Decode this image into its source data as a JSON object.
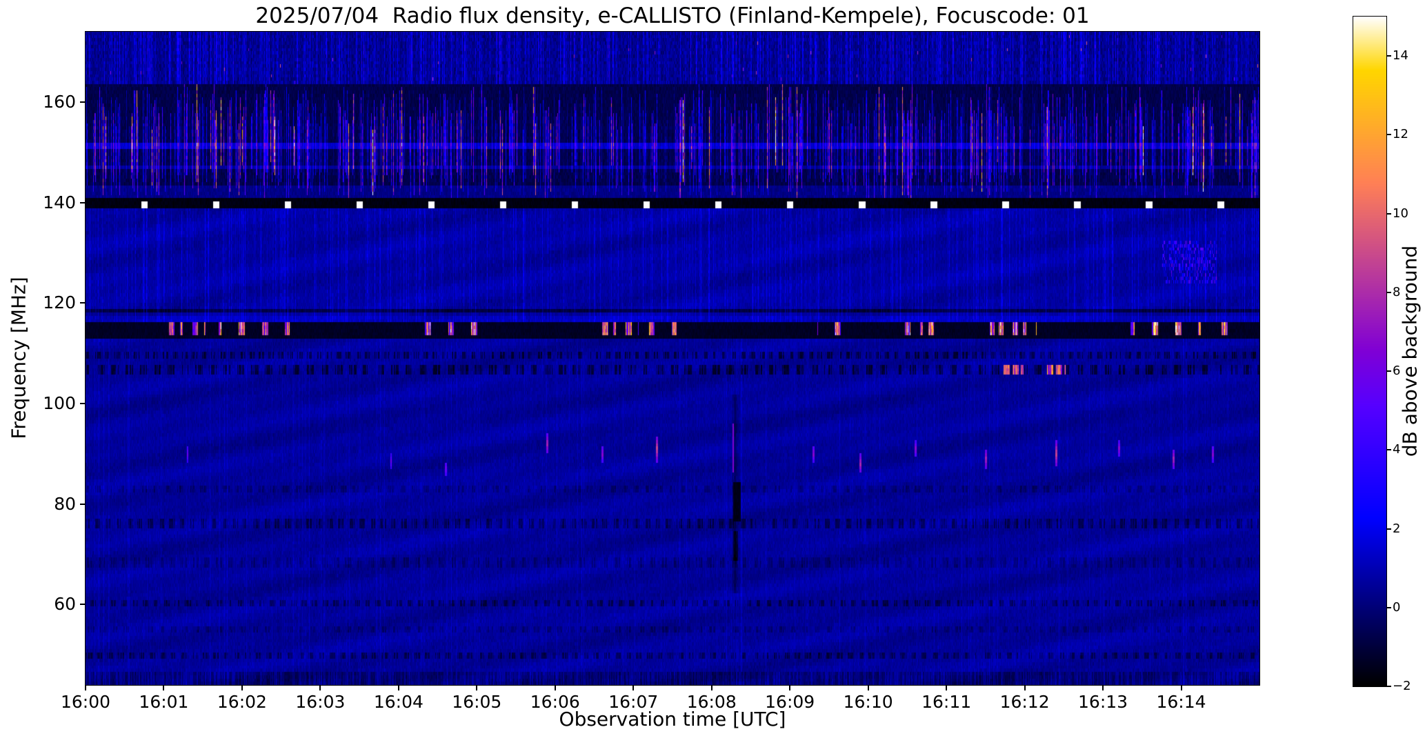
{
  "chart_data": {
    "type": "heatmap",
    "title": "2025/07/04  Radio flux density, e-CALLISTO (Finland-Kempele), Focuscode: 01",
    "xlabel": "Observation time [UTC]",
    "ylabel": "Frequency [MHz]",
    "x_ticks": [
      "16:00",
      "16:01",
      "16:02",
      "16:03",
      "16:04",
      "16:05",
      "16:06",
      "16:07",
      "16:08",
      "16:09",
      "16:10",
      "16:11",
      "16:12",
      "16:13",
      "16:14"
    ],
    "x_range_minutes_after_start": [
      0,
      15
    ],
    "y_ticks": [
      60,
      80,
      100,
      120,
      140,
      160
    ],
    "y_range_mhz": [
      44,
      174
    ],
    "grid": false,
    "colorbar": {
      "label": "dB above background",
      "ticks": [
        -2,
        0,
        2,
        4,
        6,
        8,
        10,
        12,
        14
      ],
      "range": [
        -2,
        15
      ],
      "colormap": "gnuplot2"
    },
    "features": {
      "background_level_db": 0.55,
      "upper_noise_band_mhz": [
        163.5,
        174
      ],
      "rfi_streak_band_mhz": [
        140.8,
        163.5
      ],
      "black_line_mhz": [
        138.9,
        140.8
      ],
      "calibration_blobs": {
        "freq_mhz": [
          139.0,
          140.4
        ],
        "start_min": 0.75,
        "period_min": 0.9167,
        "count": 16,
        "level_db": 15
      },
      "dark_band_mhz": [
        112.9,
        115.8
      ],
      "bright_dash_clusters_min": [
        [
          0.95,
          1.6
        ],
        [
          1.7,
          2.6
        ],
        [
          4.3,
          5.05
        ],
        [
          6.5,
          7.55
        ],
        [
          9.35,
          9.65
        ],
        [
          10.35,
          10.95
        ],
        [
          11.55,
          12.15
        ],
        [
          13.35,
          14.25
        ],
        [
          14.3,
          14.65
        ]
      ],
      "horizontal_lines_mhz": [
        151.3,
        147.0,
        118.4
      ],
      "dotted_stripes_mhz": [
        49.8,
        60.3,
        76.2
      ],
      "faint_stripes_mhz": [
        55.2,
        68.4,
        83.1
      ],
      "orange_dashes_107mhz_min": [
        [
          11.72,
          11.98
        ],
        [
          12.28,
          12.52
        ]
      ],
      "purple_patch": {
        "t_min": [
          13.75,
          14.45
        ],
        "f_mhz": [
          124,
          132.5
        ]
      },
      "dark_event": {
        "t_min": 8.3,
        "f_mhz": [
          62,
          102
        ],
        "core_f_mhz": [
          76.5,
          84.5
        ]
      },
      "point_bursts": [
        {
          "t_min": 1.3,
          "f_mhz": 90,
          "h_mhz": 3,
          "db": 4
        },
        {
          "t_min": 3.9,
          "f_mhz": 88.5,
          "h_mhz": 3,
          "db": 4
        },
        {
          "t_min": 4.6,
          "f_mhz": 87,
          "h_mhz": 3,
          "db": 4
        },
        {
          "t_min": 5.9,
          "f_mhz": 92,
          "h_mhz": 4,
          "db": 6
        },
        {
          "t_min": 6.6,
          "f_mhz": 90,
          "h_mhz": 3,
          "db": 5
        },
        {
          "t_min": 7.3,
          "f_mhz": 91,
          "h_mhz": 5,
          "db": 7
        },
        {
          "t_min": 9.3,
          "f_mhz": 90,
          "h_mhz": 3,
          "db": 5
        },
        {
          "t_min": 9.9,
          "f_mhz": 88,
          "h_mhz": 4,
          "db": 6
        },
        {
          "t_min": 10.6,
          "f_mhz": 91,
          "h_mhz": 3,
          "db": 5
        },
        {
          "t_min": 11.5,
          "f_mhz": 89,
          "h_mhz": 4,
          "db": 6
        },
        {
          "t_min": 12.4,
          "f_mhz": 90,
          "h_mhz": 5,
          "db": 7
        },
        {
          "t_min": 13.2,
          "f_mhz": 91,
          "h_mhz": 3,
          "db": 5
        },
        {
          "t_min": 13.9,
          "f_mhz": 89,
          "h_mhz": 4,
          "db": 6
        },
        {
          "t_min": 14.4,
          "f_mhz": 90,
          "h_mhz": 3,
          "db": 5
        }
      ]
    }
  }
}
